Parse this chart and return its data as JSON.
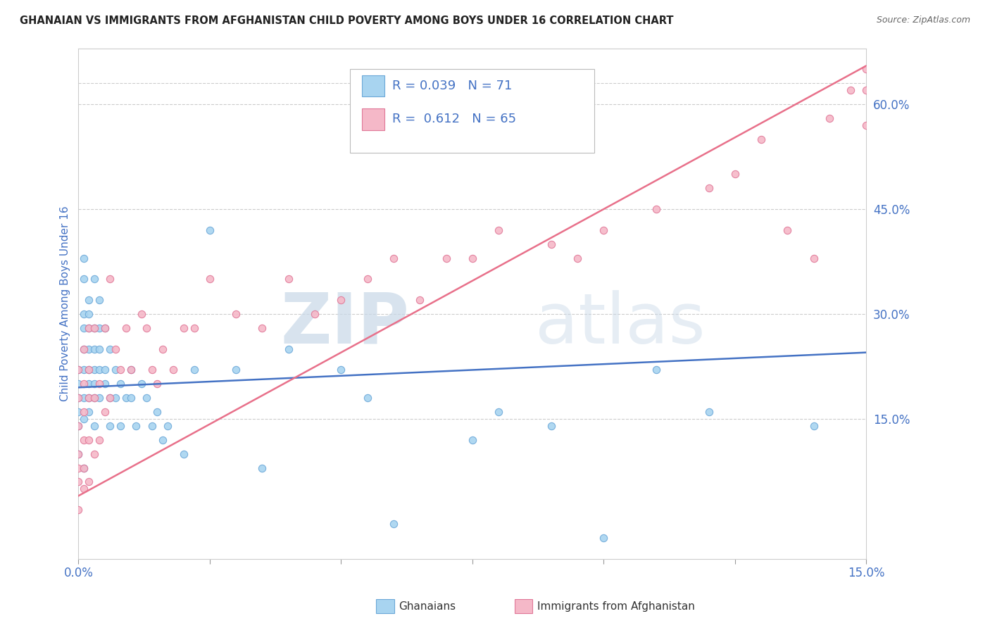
{
  "title": "GHANAIAN VS IMMIGRANTS FROM AFGHANISTAN CHILD POVERTY AMONG BOYS UNDER 16 CORRELATION CHART",
  "source": "Source: ZipAtlas.com",
  "ylabel": "Child Poverty Among Boys Under 16",
  "xlim": [
    0.0,
    0.15
  ],
  "ylim": [
    -0.05,
    0.68
  ],
  "yticks_right": [
    0.15,
    0.3,
    0.45,
    0.6
  ],
  "ytick_labels_right": [
    "15.0%",
    "30.0%",
    "45.0%",
    "60.0%"
  ],
  "ghanaian_color": "#A8D4F0",
  "ghanaian_edge_color": "#6CA8D8",
  "afghanistan_color": "#F5B8C8",
  "afghanistan_edge_color": "#E07898",
  "ghanaian_line_color": "#4472C4",
  "afghanistan_line_color": "#E8708A",
  "R_ghanaian": 0.039,
  "N_ghanaian": 71,
  "R_afghanistan": 0.612,
  "N_afghanistan": 65,
  "legend_label_1": "Ghanaians",
  "legend_label_2": "Immigrants from Afghanistan",
  "watermark_zip": "ZIP",
  "watermark_atlas": "atlas",
  "background_color": "#FFFFFF",
  "title_color": "#222222",
  "axis_label_color": "#4472C4",
  "grid_color": "#CCCCCC",
  "ghanaian_x": [
    0.0,
    0.0,
    0.0,
    0.0,
    0.0,
    0.0,
    0.001,
    0.001,
    0.001,
    0.001,
    0.001,
    0.001,
    0.001,
    0.001,
    0.001,
    0.002,
    0.002,
    0.002,
    0.002,
    0.002,
    0.002,
    0.002,
    0.002,
    0.003,
    0.003,
    0.003,
    0.003,
    0.003,
    0.003,
    0.003,
    0.004,
    0.004,
    0.004,
    0.004,
    0.004,
    0.005,
    0.005,
    0.005,
    0.006,
    0.006,
    0.006,
    0.007,
    0.007,
    0.008,
    0.008,
    0.009,
    0.01,
    0.01,
    0.011,
    0.012,
    0.013,
    0.014,
    0.015,
    0.016,
    0.017,
    0.02,
    0.022,
    0.025,
    0.03,
    0.035,
    0.04,
    0.05,
    0.055,
    0.06,
    0.075,
    0.08,
    0.09,
    0.1,
    0.11,
    0.12,
    0.14
  ],
  "ghanaian_y": [
    0.18,
    0.2,
    0.22,
    0.1,
    0.14,
    0.16,
    0.15,
    0.22,
    0.3,
    0.18,
    0.25,
    0.08,
    0.35,
    0.28,
    0.38,
    0.2,
    0.28,
    0.32,
    0.18,
    0.25,
    0.22,
    0.16,
    0.3,
    0.22,
    0.28,
    0.18,
    0.35,
    0.14,
    0.25,
    0.2,
    0.18,
    0.28,
    0.22,
    0.25,
    0.32,
    0.2,
    0.28,
    0.22,
    0.18,
    0.25,
    0.14,
    0.22,
    0.18,
    0.2,
    0.14,
    0.18,
    0.22,
    0.18,
    0.14,
    0.2,
    0.18,
    0.14,
    0.16,
    0.12,
    0.14,
    0.1,
    0.22,
    0.42,
    0.22,
    0.08,
    0.25,
    0.22,
    0.18,
    0.0,
    0.12,
    0.16,
    0.14,
    -0.02,
    0.22,
    0.16,
    0.14
  ],
  "afghanistan_x": [
    0.0,
    0.0,
    0.0,
    0.0,
    0.0,
    0.0,
    0.0,
    0.001,
    0.001,
    0.001,
    0.001,
    0.001,
    0.001,
    0.002,
    0.002,
    0.002,
    0.002,
    0.002,
    0.003,
    0.003,
    0.003,
    0.004,
    0.004,
    0.005,
    0.005,
    0.006,
    0.006,
    0.007,
    0.008,
    0.009,
    0.01,
    0.012,
    0.013,
    0.014,
    0.015,
    0.016,
    0.018,
    0.02,
    0.022,
    0.025,
    0.03,
    0.035,
    0.04,
    0.045,
    0.05,
    0.055,
    0.06,
    0.065,
    0.07,
    0.075,
    0.08,
    0.09,
    0.095,
    0.1,
    0.11,
    0.12,
    0.125,
    0.13,
    0.135,
    0.14,
    0.143,
    0.147,
    0.15,
    0.15,
    0.15
  ],
  "afghanistan_y": [
    0.02,
    0.06,
    0.08,
    0.1,
    0.14,
    0.18,
    0.22,
    0.05,
    0.08,
    0.12,
    0.16,
    0.2,
    0.25,
    0.06,
    0.12,
    0.18,
    0.22,
    0.28,
    0.1,
    0.18,
    0.28,
    0.12,
    0.2,
    0.16,
    0.28,
    0.18,
    0.35,
    0.25,
    0.22,
    0.28,
    0.22,
    0.3,
    0.28,
    0.22,
    0.2,
    0.25,
    0.22,
    0.28,
    0.28,
    0.35,
    0.3,
    0.28,
    0.35,
    0.3,
    0.32,
    0.35,
    0.38,
    0.32,
    0.38,
    0.38,
    0.42,
    0.4,
    0.38,
    0.42,
    0.45,
    0.48,
    0.5,
    0.55,
    0.42,
    0.38,
    0.58,
    0.62,
    0.57,
    0.62,
    0.65
  ]
}
